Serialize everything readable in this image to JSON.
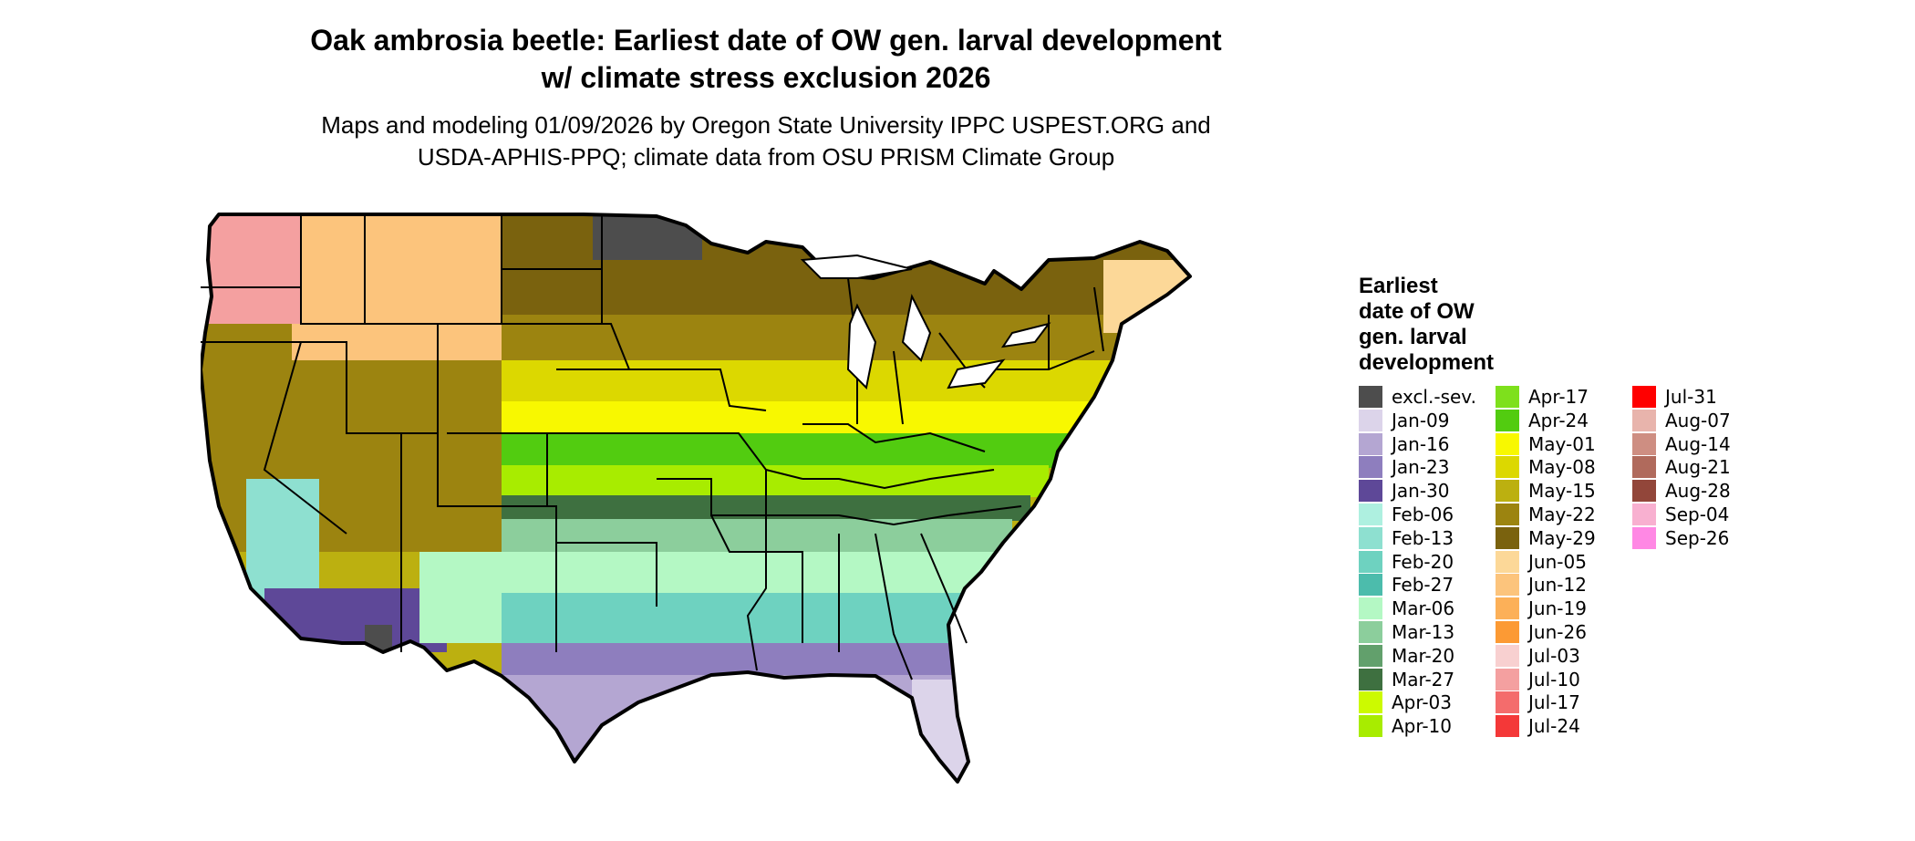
{
  "header": {
    "title_lines": [
      "Oak ambrosia beetle: Earliest date of OW gen. larval development",
      "w/ climate stress exclusion 2026"
    ],
    "subtitle_lines": [
      "Maps and modeling 01/09/2026 by Oregon State University IPPC USPEST.ORG and",
      "USDA-APHIS-PPQ; climate data from OSU PRISM Climate Group"
    ]
  },
  "legend": {
    "title_lines": [
      "Earliest",
      "date of OW",
      "gen. larval",
      "development"
    ],
    "items": [
      {
        "label": "excl.-sev.",
        "color": "#4d4d4d"
      },
      {
        "label": "Jan-09",
        "color": "#dcd4ea"
      },
      {
        "label": "Jan-16",
        "color": "#b4a6d2"
      },
      {
        "label": "Jan-23",
        "color": "#8e7ebe"
      },
      {
        "label": "Jan-30",
        "color": "#5e4898"
      },
      {
        "label": "Feb-06",
        "color": "#aef0e0"
      },
      {
        "label": "Feb-13",
        "color": "#8ee0d0"
      },
      {
        "label": "Feb-20",
        "color": "#6ed2c0"
      },
      {
        "label": "Feb-27",
        "color": "#4cbcac"
      },
      {
        "label": "Mar-06",
        "color": "#b4f8c4"
      },
      {
        "label": "Mar-13",
        "color": "#8cce9c"
      },
      {
        "label": "Mar-20",
        "color": "#62a06c"
      },
      {
        "label": "Mar-27",
        "color": "#3e7040"
      },
      {
        "label": "Apr-03",
        "color": "#ccfa00"
      },
      {
        "label": "Apr-10",
        "color": "#a8ec00"
      },
      {
        "label": "Apr-17",
        "color": "#7ee01c"
      },
      {
        "label": "Apr-24",
        "color": "#52cc10"
      },
      {
        "label": "May-01",
        "color": "#f8f800"
      },
      {
        "label": "May-08",
        "color": "#dcd800"
      },
      {
        "label": "May-15",
        "color": "#bcb010"
      },
      {
        "label": "May-22",
        "color": "#9c8410"
      },
      {
        "label": "May-29",
        "color": "#7a620e"
      },
      {
        "label": "Jun-05",
        "color": "#fcd898"
      },
      {
        "label": "Jun-12",
        "color": "#fcc47c"
      },
      {
        "label": "Jun-19",
        "color": "#fcb058"
      },
      {
        "label": "Jun-26",
        "color": "#fc9a34"
      },
      {
        "label": "Jul-03",
        "color": "#f8d0d0"
      },
      {
        "label": "Jul-10",
        "color": "#f4a0a0"
      },
      {
        "label": "Jul-17",
        "color": "#f46c6c"
      },
      {
        "label": "Jul-24",
        "color": "#f43838"
      },
      {
        "label": "Jul-31",
        "color": "#ff0000"
      },
      {
        "label": "Aug-07",
        "color": "#e8b4ac"
      },
      {
        "label": "Aug-14",
        "color": "#ce8e82"
      },
      {
        "label": "Aug-21",
        "color": "#b06a5c"
      },
      {
        "label": "Aug-28",
        "color": "#92463a"
      },
      {
        "label": "Sep-04",
        "color": "#f8b0d0"
      },
      {
        "label": "Sep-26",
        "color": "#ff88e4"
      }
    ]
  },
  "map": {
    "outline_color": "#000000",
    "background_color": "#ffffff"
  }
}
